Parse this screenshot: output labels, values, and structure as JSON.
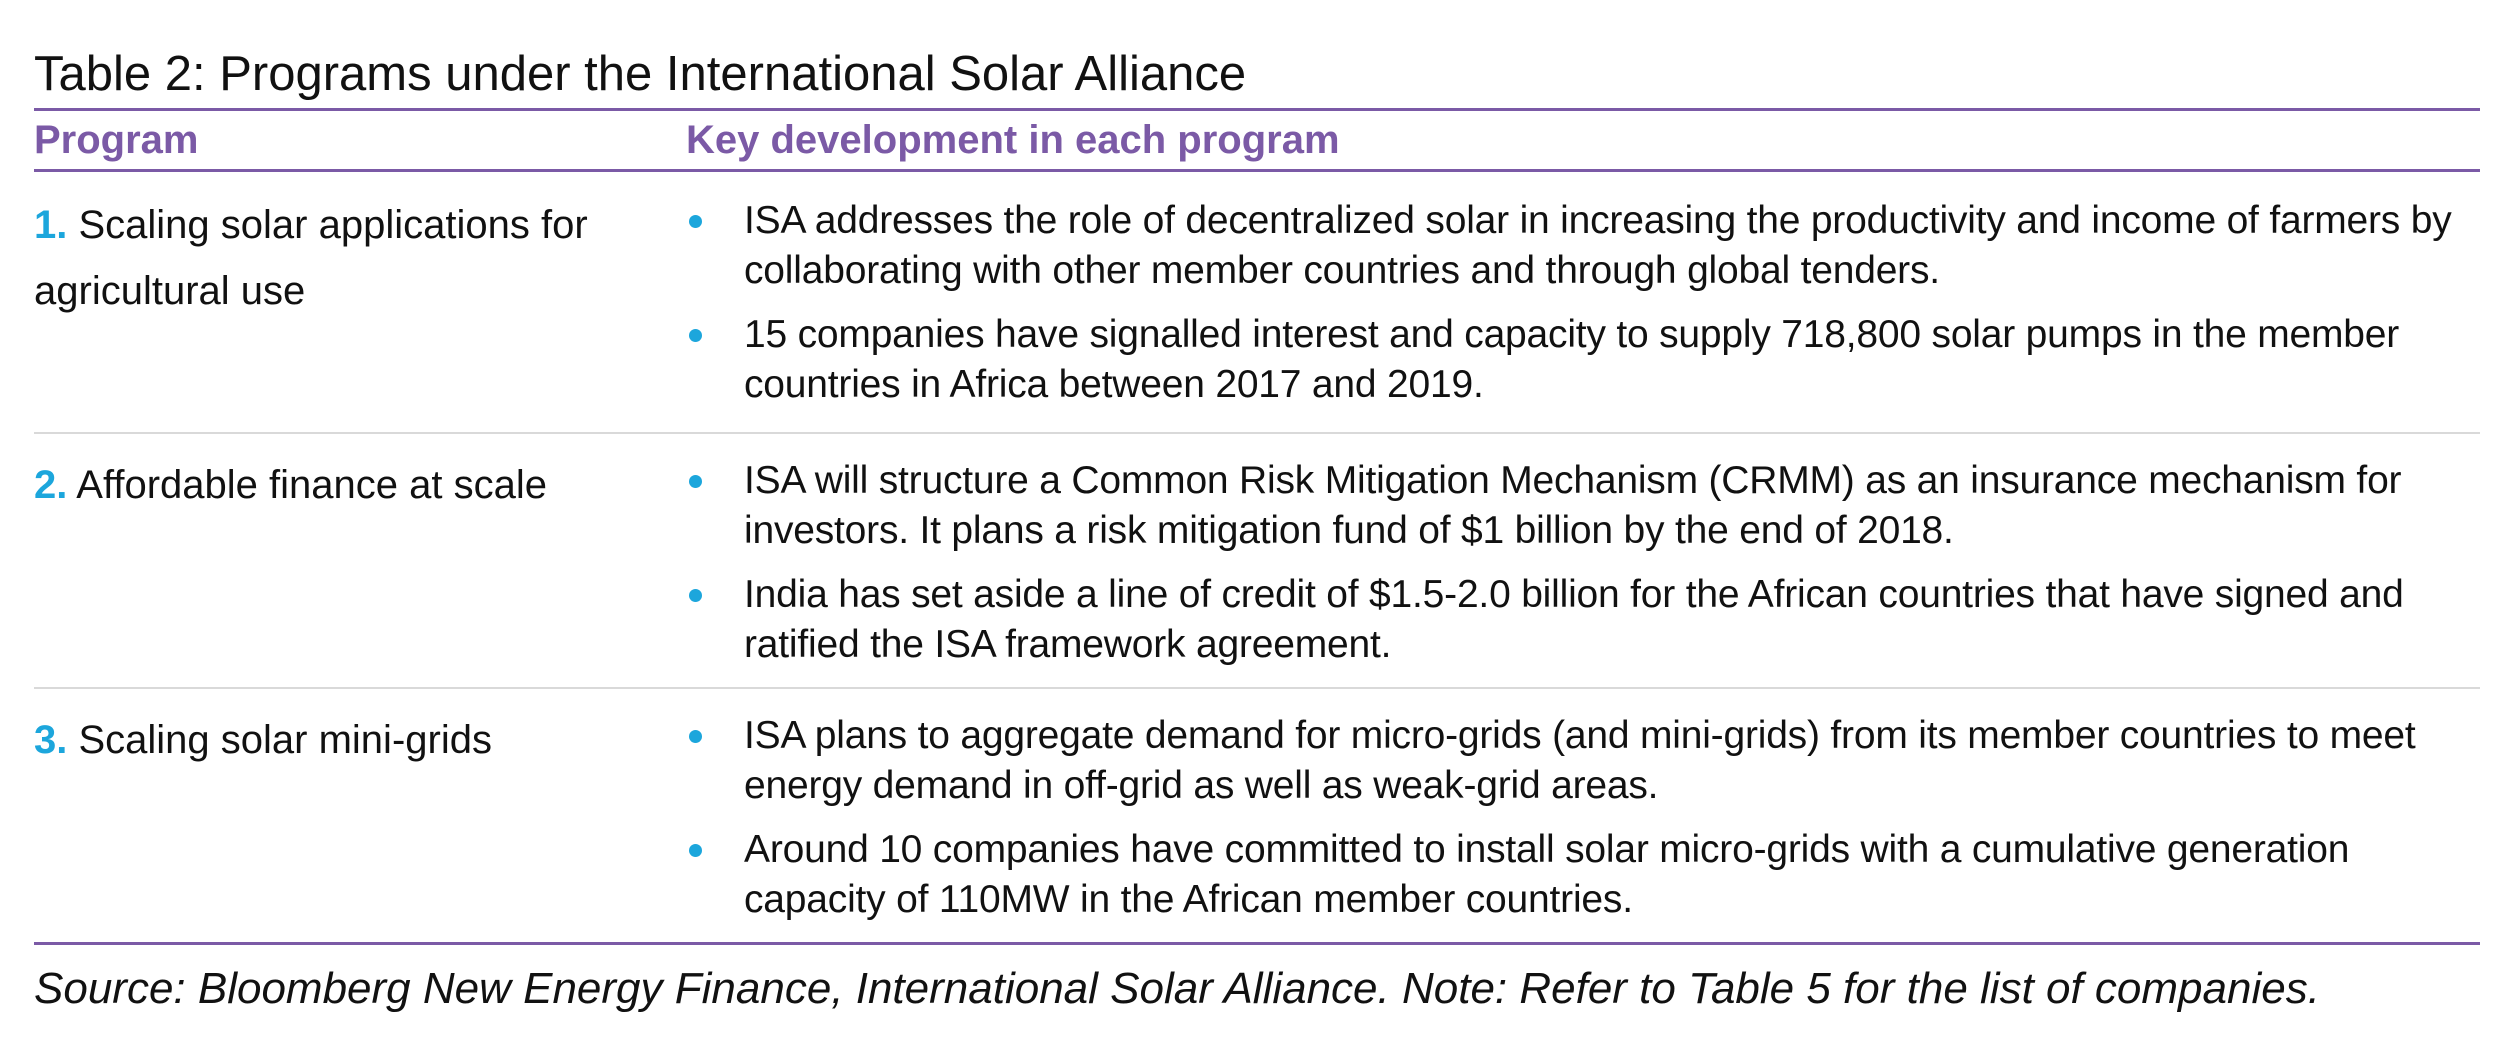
{
  "title": "Table 2: Programs under the International Solar Alliance",
  "header": {
    "program": "Program",
    "development": "Key development in each program"
  },
  "rows": [
    {
      "number": "1.",
      "program": "Scaling solar applications for agricultural use",
      "bullets": [
        "ISA addresses the role of decentralized solar in increasing the productivity and income of farmers by collaborating with other member countries and through global tenders.",
        "15 companies have signalled interest and capacity to supply 718,800 solar pumps in the member countries in Africa between 2017 and 2019."
      ]
    },
    {
      "number": "2.",
      "program": "Affordable finance at scale",
      "bullets": [
        "ISA will structure a Common Risk Mitigation Mechanism (CRMM) as an insurance mechanism for investors. It plans a risk mitigation fund of $1 billion by the end of 2018.",
        "India has set aside a line of credit of $1.5-2.0 billion for the African countries that have signed and ratified the ISA framework agreement."
      ]
    },
    {
      "number": "3.",
      "program": "Scaling solar mini-grids",
      "bullets": [
        "ISA plans to aggregate demand for micro-grids (and mini-grids) from its member countries to meet energy demand in off-grid as well as weak-grid areas.",
        "Around 10 companies have committed to install solar micro-grids with a cumulative generation capacity of 110MW in the African member countries."
      ]
    }
  ],
  "source": "Source: Bloomberg New Energy Finance, International Solar Alliance. Note: Refer to Table 5 for the list of companies.",
  "colors": {
    "accent_purple": "#7b5aa6",
    "number_blue": "#1ca6dc",
    "divider_gray": "#d9d9d9"
  }
}
